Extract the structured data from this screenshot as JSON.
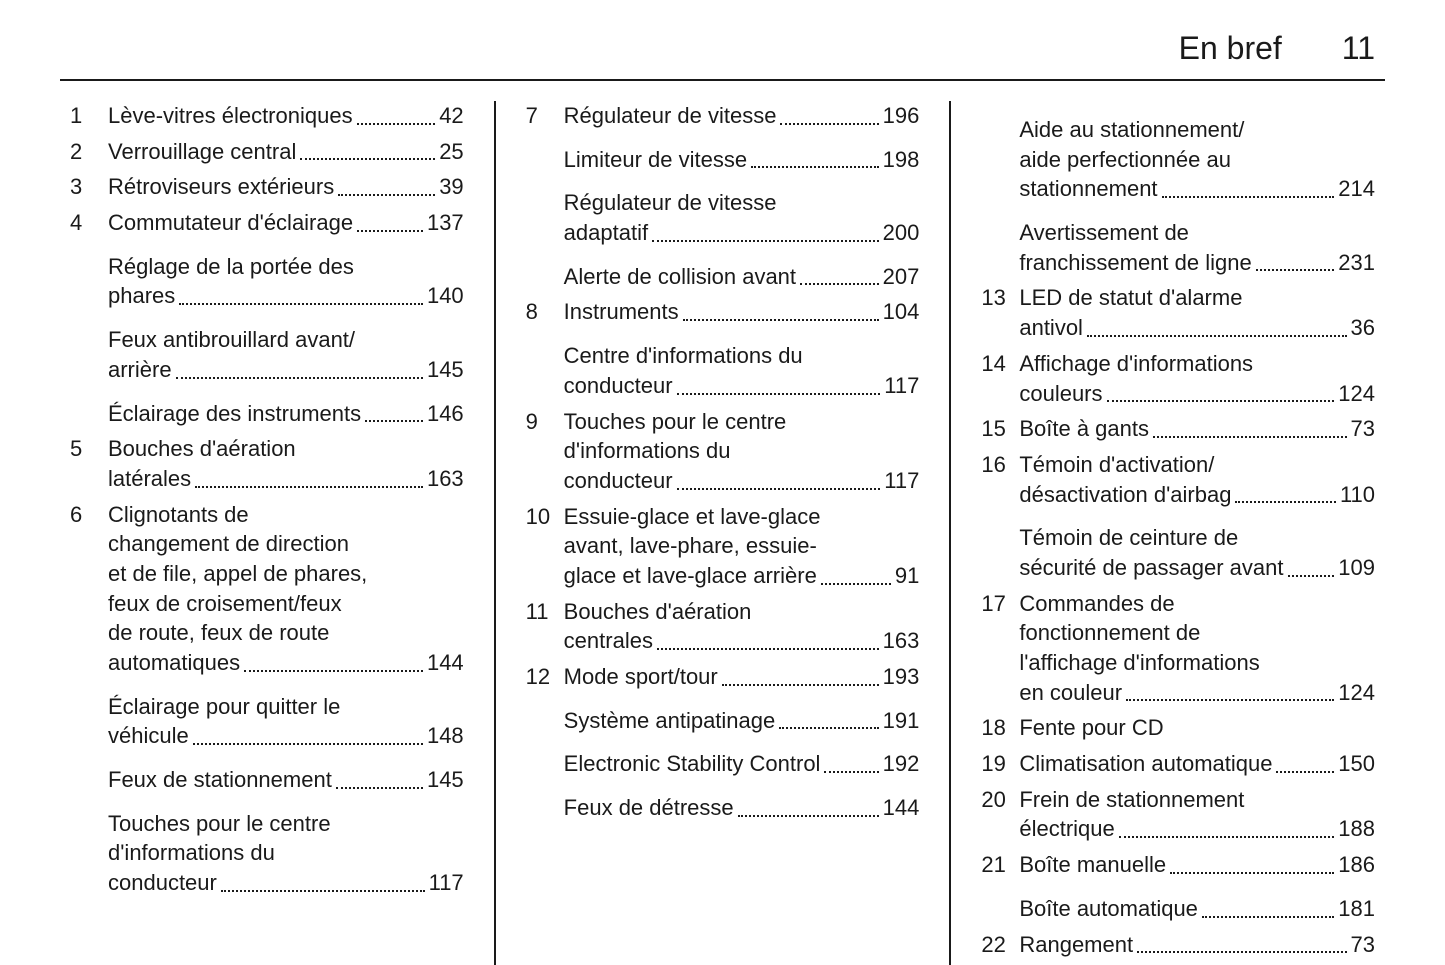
{
  "header": {
    "title": "En bref",
    "page": "11"
  },
  "columns": [
    [
      {
        "num": "1",
        "lines": [
          "Lève-vitres électroniques"
        ],
        "page": "42"
      },
      {
        "num": "2",
        "lines": [
          "Verrouillage central"
        ],
        "page": "25"
      },
      {
        "num": "3",
        "lines": [
          "Rétroviseurs extérieurs"
        ],
        "page": "39"
      },
      {
        "num": "4",
        "lines": [
          "Commutateur d'éclairage"
        ],
        "page": "137"
      },
      {
        "num": "",
        "lines": [
          "Réglage de la portée des",
          "phares"
        ],
        "page": "140",
        "sub": true
      },
      {
        "num": "",
        "lines": [
          "Feux antibrouillard avant/",
          "arrière"
        ],
        "page": "145",
        "sub": true
      },
      {
        "num": "",
        "lines": [
          "Éclairage des instruments"
        ],
        "page": "146",
        "sub": true
      },
      {
        "num": "5",
        "lines": [
          "Bouches d'aération",
          "latérales"
        ],
        "page": "163"
      },
      {
        "num": "6",
        "lines": [
          "Clignotants de",
          "changement de direction",
          "et de file, appel de phares,",
          "feux de croisement/feux",
          "de route, feux de route",
          "automatiques"
        ],
        "page": "144"
      },
      {
        "num": "",
        "lines": [
          "Éclairage pour quitter le",
          "véhicule"
        ],
        "page": "148",
        "sub": true
      },
      {
        "num": "",
        "lines": [
          "Feux de stationnement"
        ],
        "page": "145",
        "sub": true
      },
      {
        "num": "",
        "lines": [
          "Touches pour le centre",
          "d'informations du",
          "conducteur"
        ],
        "page": "117",
        "sub": true
      }
    ],
    [
      {
        "num": "7",
        "lines": [
          "Régulateur de vitesse"
        ],
        "page": "196"
      },
      {
        "num": "",
        "lines": [
          "Limiteur de vitesse"
        ],
        "page": "198",
        "sub": true
      },
      {
        "num": "",
        "lines": [
          "Régulateur de vitesse",
          "adaptatif"
        ],
        "page": "200",
        "sub": true
      },
      {
        "num": "",
        "lines": [
          "Alerte de collision avant"
        ],
        "page": "207",
        "sub": true
      },
      {
        "num": "8",
        "lines": [
          "Instruments"
        ],
        "page": "104"
      },
      {
        "num": "",
        "lines": [
          "Centre d'informations du",
          "conducteur"
        ],
        "page": "117",
        "sub": true
      },
      {
        "num": "9",
        "lines": [
          "Touches pour le centre",
          "d'informations du",
          "conducteur"
        ],
        "page": "117"
      },
      {
        "num": "10",
        "lines": [
          "Essuie-glace et lave-glace",
          "avant, lave-phare, essuie-",
          "glace et lave-glace arrière"
        ],
        "page": "91"
      },
      {
        "num": "11",
        "lines": [
          "Bouches d'aération",
          "centrales"
        ],
        "page": "163"
      },
      {
        "num": "12",
        "lines": [
          "Mode sport/tour"
        ],
        "page": "193"
      },
      {
        "num": "",
        "lines": [
          "Système antipatinage"
        ],
        "page": "191",
        "sub": true
      },
      {
        "num": "",
        "lines": [
          "Electronic Stability Control"
        ],
        "page": "192",
        "sub": true
      },
      {
        "num": "",
        "lines": [
          "Feux de détresse"
        ],
        "page": "144",
        "sub": true
      }
    ],
    [
      {
        "num": "",
        "lines": [
          "Aide au stationnement/",
          "aide perfectionnée au",
          "stationnement"
        ],
        "page": "214",
        "sub": true
      },
      {
        "num": "",
        "lines": [
          "Avertissement de",
          "franchissement de ligne"
        ],
        "page": "231",
        "sub": true
      },
      {
        "num": "13",
        "lines": [
          "LED de statut d'alarme",
          "antivol"
        ],
        "page": "36"
      },
      {
        "num": "14",
        "lines": [
          "Affichage d'informations",
          "couleurs"
        ],
        "page": "124"
      },
      {
        "num": "15",
        "lines": [
          "Boîte à gants"
        ],
        "page": "73"
      },
      {
        "num": "16",
        "lines": [
          "Témoin d'activation/",
          "désactivation d'airbag"
        ],
        "page": "110"
      },
      {
        "num": "",
        "lines": [
          "Témoin de ceinture de",
          "sécurité de passager avant"
        ],
        "page": "109",
        "sub": true
      },
      {
        "num": "17",
        "lines": [
          "Commandes de",
          "fonctionnement de",
          "l'affichage d'informations",
          "en couleur"
        ],
        "page": "124"
      },
      {
        "num": "18",
        "lines": [
          "Fente pour CD"
        ],
        "page": ""
      },
      {
        "num": "19",
        "lines": [
          "Climatisation automatique"
        ],
        "page": "150"
      },
      {
        "num": "20",
        "lines": [
          "Frein de stationnement",
          "électrique"
        ],
        "page": "188"
      },
      {
        "num": "21",
        "lines": [
          "Boîte manuelle"
        ],
        "page": "186"
      },
      {
        "num": "",
        "lines": [
          "Boîte automatique"
        ],
        "page": "181",
        "sub": true
      },
      {
        "num": "22",
        "lines": [
          "Rangement"
        ],
        "page": "73"
      }
    ]
  ]
}
